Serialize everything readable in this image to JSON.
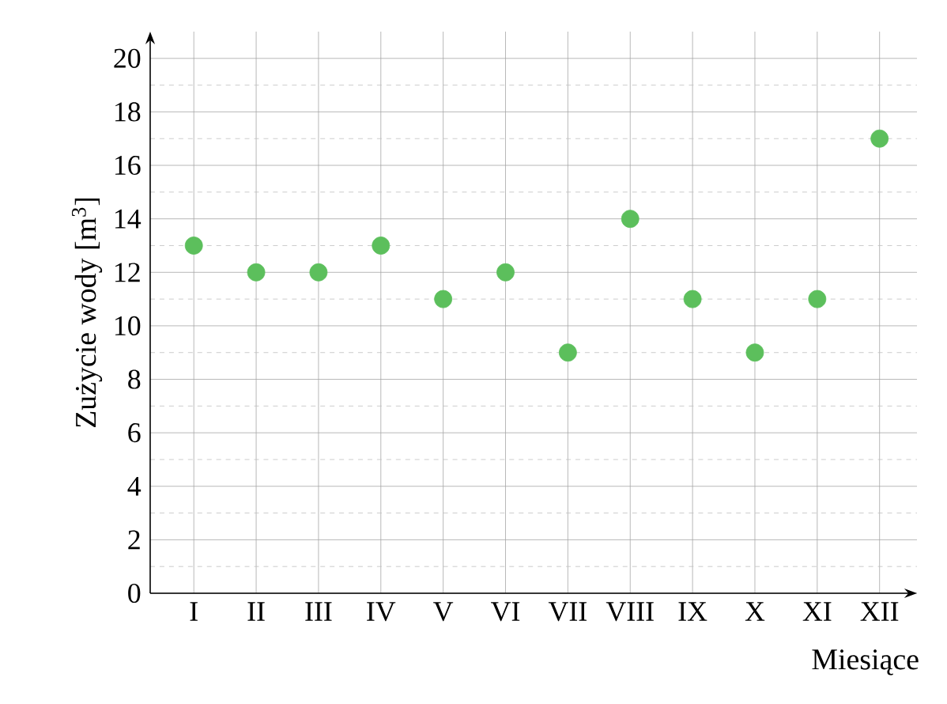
{
  "chart_data": {
    "type": "scatter",
    "ylabel": "Zużycie wody [m$^{3}$]",
    "xlabel": "Miesiące",
    "categories": [
      "I",
      "II",
      "III",
      "IV",
      "V",
      "VI",
      "VII",
      "VIII",
      "IX",
      "X",
      "XI",
      "XII"
    ],
    "values": [
      13,
      12,
      12,
      13,
      11,
      12,
      9,
      14,
      11,
      9,
      11,
      17
    ],
    "color": "#5cbf5c",
    "marker": "circle",
    "grid": true,
    "ylim": [
      0,
      21
    ],
    "yticks": [
      0,
      2,
      4,
      6,
      8,
      10,
      12,
      14,
      16,
      18,
      20
    ]
  }
}
